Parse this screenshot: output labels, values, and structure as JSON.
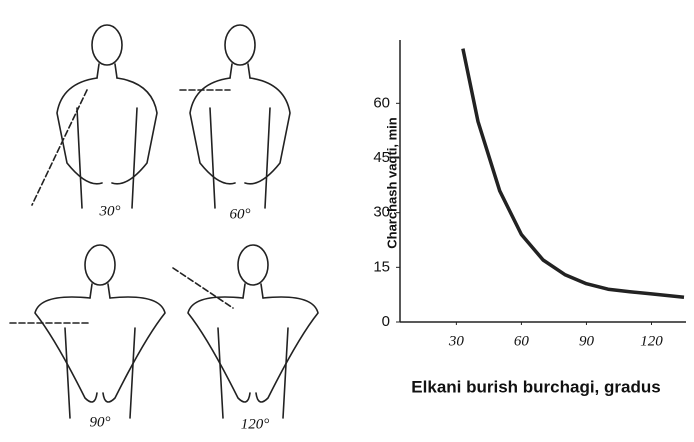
{
  "figures": {
    "labels": [
      "30°",
      "60°",
      "90°",
      "120°"
    ]
  },
  "chart_data": {
    "type": "line",
    "x": [
      33,
      40,
      50,
      60,
      70,
      80,
      90,
      100,
      110,
      120,
      135
    ],
    "values": [
      75,
      55,
      36,
      24,
      17,
      13,
      10.5,
      9,
      8.3,
      7.7,
      6.8
    ],
    "color": "#222222",
    "xlim": [
      4,
      135
    ],
    "ylim": [
      0,
      76
    ],
    "xticks": [
      30,
      60,
      90,
      120
    ],
    "yticks": [
      0,
      15,
      30,
      45,
      60
    ],
    "x_label": "Elkani burish burchagi, gradus",
    "y_label": "Charchash vaqti, min"
  }
}
